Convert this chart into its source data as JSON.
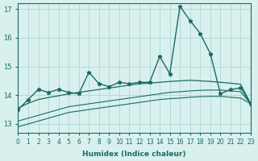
{
  "xlabel": "Humidex (Indice chaleur)",
  "xlim": [
    0,
    23
  ],
  "ylim": [
    12.7,
    17.2
  ],
  "yticks": [
    13,
    14,
    15,
    16,
    17
  ],
  "xticks": [
    0,
    1,
    2,
    3,
    4,
    5,
    6,
    7,
    8,
    9,
    10,
    11,
    12,
    13,
    14,
    15,
    16,
    17,
    18,
    19,
    20,
    21,
    22,
    23
  ],
  "bg_color": "#d8f0ee",
  "grid_color": "#b0d8d4",
  "line_color": "#1a6b5e",
  "main_y": [
    13.5,
    13.85,
    14.2,
    14.1,
    14.2,
    14.1,
    14.05,
    14.8,
    14.4,
    14.3,
    14.45,
    14.4,
    14.45,
    14.45,
    15.35,
    14.75,
    17.1,
    16.6,
    16.15,
    15.45,
    14.05,
    14.2,
    14.25,
    13.7
  ],
  "trend1_y": [
    13.55,
    13.72,
    13.85,
    13.92,
    13.98,
    14.05,
    14.1,
    14.15,
    14.2,
    14.25,
    14.3,
    14.35,
    14.4,
    14.42,
    14.45,
    14.48,
    14.5,
    14.52,
    14.5,
    14.48,
    14.45,
    14.42,
    14.38,
    13.7
  ],
  "trend2_y": [
    13.1,
    13.2,
    13.3,
    13.4,
    13.5,
    13.6,
    13.65,
    13.7,
    13.75,
    13.8,
    13.85,
    13.9,
    13.95,
    14.0,
    14.05,
    14.1,
    14.12,
    14.15,
    14.17,
    14.18,
    14.18,
    14.15,
    14.12,
    13.7
  ],
  "trend3_y": [
    12.9,
    13.0,
    13.1,
    13.2,
    13.3,
    13.4,
    13.45,
    13.5,
    13.55,
    13.6,
    13.65,
    13.7,
    13.75,
    13.8,
    13.85,
    13.88,
    13.9,
    13.93,
    13.95,
    13.96,
    13.96,
    13.93,
    13.9,
    13.7
  ]
}
